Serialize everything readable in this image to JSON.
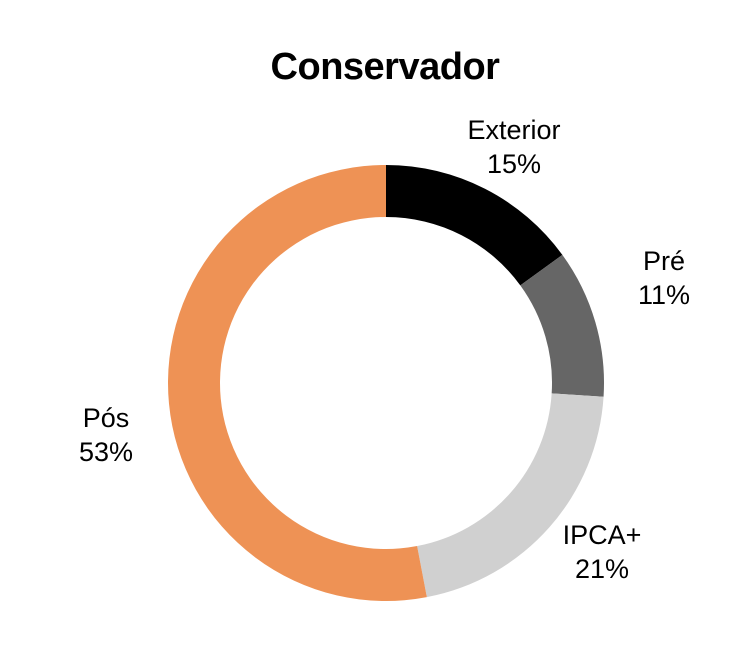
{
  "chart_data": {
    "type": "pie",
    "title": "Conservador",
    "categories": [
      "Exterior",
      "Pré",
      "IPCA+",
      "Pós"
    ],
    "values": [
      15,
      11,
      21,
      53
    ],
    "value_labels": [
      "15%",
      "11%",
      "21%",
      "53%"
    ],
    "colors": [
      "#000000",
      "#666666",
      "#d0d0d0",
      "#ee9255"
    ],
    "donut": true,
    "start": "top",
    "direction": "clockwise",
    "legend": "none"
  }
}
